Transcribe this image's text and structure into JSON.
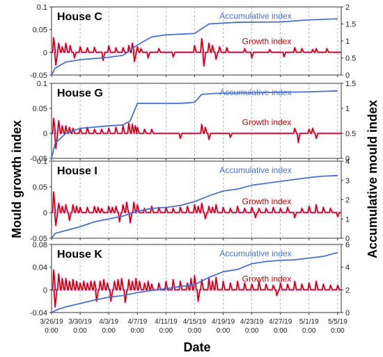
{
  "chart_data": {
    "type": "line",
    "xlabel": "Date",
    "ylabel_left": "Mould growth index",
    "ylabel_right": "Accumulative mould index",
    "x_ticks": [
      {
        "date": "3/26/19",
        "time": "0:00",
        "day": 0
      },
      {
        "date": "3/30/19",
        "time": "0:00",
        "day": 4
      },
      {
        "date": "4/3/19",
        "time": "0:00",
        "day": 8
      },
      {
        "date": "4/7/19",
        "time": "0:00",
        "day": 12
      },
      {
        "date": "4/11/19",
        "time": "0:00",
        "day": 16
      },
      {
        "date": "4/15/19",
        "time": "0:00",
        "day": 20
      },
      {
        "date": "4/19/19",
        "time": "0:00",
        "day": 24
      },
      {
        "date": "4/23/19",
        "time": "0:00",
        "day": 28
      },
      {
        "date": "4/27/19",
        "time": "0:00",
        "day": 32
      },
      {
        "date": "5/1/19",
        "time": "0:00",
        "day": 36
      },
      {
        "date": "5/5/19",
        "time": "0:00",
        "day": 40
      }
    ],
    "series_colors": {
      "accumulative": "#4a6fd0",
      "growth": "#c00000",
      "growth_glow": "#f06cf0"
    },
    "panels": [
      {
        "title": "House C",
        "left_ticks": [
          "0.1",
          "0.05",
          "0",
          "-0.05"
        ],
        "left_range": [
          -0.05,
          0.1
        ],
        "right_ticks": [
          "2",
          "1.5",
          "1",
          "0.5",
          "0"
        ],
        "right_range": [
          0,
          2
        ],
        "accum_label": "Accumulative index",
        "growth_label": "Growth index",
        "accumulative": [
          [
            0,
            0
          ],
          [
            0.5,
            0.2
          ],
          [
            2,
            0.38
          ],
          [
            4,
            0.45
          ],
          [
            8,
            0.52
          ],
          [
            10,
            0.58
          ],
          [
            12,
            0.88
          ],
          [
            14,
            1.12
          ],
          [
            16,
            1.18
          ],
          [
            18,
            1.2
          ],
          [
            20,
            1.22
          ],
          [
            22,
            1.5
          ],
          [
            26,
            1.55
          ],
          [
            32,
            1.56
          ],
          [
            36,
            1.62
          ],
          [
            40,
            1.65
          ]
        ],
        "growth_spikes": [
          [
            0.3,
            0.032
          ],
          [
            0.6,
            -0.028
          ],
          [
            1,
            0.02
          ],
          [
            1.5,
            0.012
          ],
          [
            2,
            0.02
          ],
          [
            2.6,
            0.015
          ],
          [
            3.2,
            -0.012
          ],
          [
            4,
            0.012
          ],
          [
            5,
            0.01
          ],
          [
            6,
            0.011
          ],
          [
            7.2,
            -0.018
          ],
          [
            8,
            0.014
          ],
          [
            9,
            0.01
          ],
          [
            10,
            0.01
          ],
          [
            10.8,
            0.015
          ],
          [
            11.3,
            0.02
          ],
          [
            11.6,
            -0.02
          ],
          [
            12,
            0.012
          ],
          [
            12.5,
            0.008
          ],
          [
            13.5,
            -0.012
          ],
          [
            15,
            0.008
          ],
          [
            17,
            -0.01
          ],
          [
            20,
            0.015
          ],
          [
            21,
            0.03
          ],
          [
            21.3,
            -0.03
          ],
          [
            22,
            0.02
          ],
          [
            22.5,
            0.015
          ],
          [
            23,
            -0.015
          ],
          [
            23.5,
            0.012
          ],
          [
            24.5,
            0.01
          ],
          [
            27,
            0.008
          ],
          [
            28,
            -0.012
          ],
          [
            30.5,
            0.006
          ],
          [
            32.5,
            -0.01
          ],
          [
            34,
            0.01
          ],
          [
            35,
            0.008
          ],
          [
            36.5,
            0.006
          ],
          [
            37,
            0.008
          ],
          [
            38.5,
            0.008
          ]
        ]
      },
      {
        "title": "House G",
        "left_ticks": [
          "0.1",
          "0.05",
          "0",
          "-0.05"
        ],
        "left_range": [
          -0.05,
          0.1
        ],
        "right_ticks": [
          "1.5",
          "1",
          "0.5",
          "0"
        ],
        "right_range": [
          0,
          1.5
        ],
        "accum_label": "Accumulative index",
        "growth_label": "Growth index",
        "accumulative": [
          [
            0,
            0
          ],
          [
            0.5,
            0.3
          ],
          [
            2,
            0.5
          ],
          [
            4,
            0.6
          ],
          [
            8,
            0.65
          ],
          [
            10,
            0.67
          ],
          [
            11,
            0.75
          ],
          [
            12,
            1.1
          ],
          [
            18,
            1.1
          ],
          [
            20,
            1.12
          ],
          [
            21,
            1.28
          ],
          [
            23,
            1.3
          ],
          [
            36,
            1.33
          ],
          [
            40,
            1.35
          ]
        ],
        "growth_spikes": [
          [
            0.3,
            0.03
          ],
          [
            0.6,
            -0.03
          ],
          [
            1,
            0.025
          ],
          [
            1.5,
            0.015
          ],
          [
            2,
            0.015
          ],
          [
            2.5,
            0.012
          ],
          [
            3,
            0.01
          ],
          [
            4,
            0.01
          ],
          [
            5,
            0.012
          ],
          [
            6,
            0.008
          ],
          [
            7,
            0.008
          ],
          [
            8,
            0.01
          ],
          [
            9,
            0.012
          ],
          [
            10,
            0.015
          ],
          [
            10.8,
            0.02
          ],
          [
            11.3,
            0.018
          ],
          [
            11.7,
            0.015
          ],
          [
            12,
            0.012
          ],
          [
            13,
            0.008
          ],
          [
            14,
            0.008
          ],
          [
            18,
            -0.01
          ],
          [
            21,
            0.018
          ],
          [
            21.5,
            0.012
          ],
          [
            22,
            -0.012
          ],
          [
            25,
            -0.008
          ],
          [
            34,
            0.01
          ],
          [
            34.5,
            -0.018
          ],
          [
            36,
            0.008
          ],
          [
            36.5,
            0.01
          ],
          [
            37,
            -0.01
          ]
        ]
      },
      {
        "title": "House I",
        "left_ticks": [
          "0.1",
          "0.05",
          "0",
          "-0.05"
        ],
        "left_range": [
          -0.05,
          0.1
        ],
        "right_ticks": [
          "4",
          "3",
          "2",
          "1",
          "0"
        ],
        "right_range": [
          0,
          4
        ],
        "accum_label": "Accumulative index",
        "growth_label": "Growth index",
        "accumulative": [
          [
            0,
            0
          ],
          [
            0.5,
            0.25
          ],
          [
            2,
            0.4
          ],
          [
            4,
            0.6
          ],
          [
            6,
            0.85
          ],
          [
            8,
            1.0
          ],
          [
            10,
            1.15
          ],
          [
            12,
            1.4
          ],
          [
            14,
            1.55
          ],
          [
            16,
            1.6
          ],
          [
            18,
            1.7
          ],
          [
            20,
            1.9
          ],
          [
            22,
            2.2
          ],
          [
            24,
            2.45
          ],
          [
            26,
            2.55
          ],
          [
            28,
            2.75
          ],
          [
            30,
            2.85
          ],
          [
            32,
            2.95
          ],
          [
            34,
            3.05
          ],
          [
            36,
            3.15
          ],
          [
            38,
            3.22
          ],
          [
            40,
            3.25
          ]
        ],
        "growth_spikes": [
          [
            0.3,
            0.04
          ],
          [
            0.6,
            -0.025
          ],
          [
            1,
            0.018
          ],
          [
            1.5,
            0.012
          ],
          [
            2,
            0.015
          ],
          [
            2.5,
            -0.015
          ],
          [
            3,
            0.015
          ],
          [
            3.5,
            0.012
          ],
          [
            4,
            0.01
          ],
          [
            5,
            0.01
          ],
          [
            6,
            0.012
          ],
          [
            6.5,
            0.01
          ],
          [
            7,
            0.008
          ],
          [
            8,
            0.012
          ],
          [
            8.5,
            0.01
          ],
          [
            9,
            0.012
          ],
          [
            9.5,
            -0.018
          ],
          [
            10,
            0.015
          ],
          [
            10.5,
            0.02
          ],
          [
            11,
            -0.02
          ],
          [
            11.5,
            0.02
          ],
          [
            12,
            0.015
          ],
          [
            13,
            0.008
          ],
          [
            14,
            0.012
          ],
          [
            15,
            0.01
          ],
          [
            16,
            0.01
          ],
          [
            17,
            0.008
          ],
          [
            18,
            0.01
          ],
          [
            19,
            0.012
          ],
          [
            20,
            0.015
          ],
          [
            20.5,
            0.012
          ],
          [
            21,
            0.018
          ],
          [
            21.5,
            -0.012
          ],
          [
            22,
            0.012
          ],
          [
            22.5,
            0.01
          ],
          [
            23,
            0.015
          ],
          [
            24,
            0.01
          ],
          [
            25,
            0.008
          ],
          [
            26,
            0.012
          ],
          [
            27,
            0.008
          ],
          [
            28,
            0.01
          ],
          [
            28.5,
            -0.01
          ],
          [
            29,
            0.008
          ],
          [
            30,
            0.008
          ],
          [
            31,
            0.01
          ],
          [
            32,
            0.008
          ],
          [
            33,
            0.01
          ],
          [
            34,
            -0.01
          ],
          [
            35,
            0.008
          ],
          [
            36,
            0.012
          ],
          [
            37,
            0.015
          ],
          [
            38,
            0.01
          ],
          [
            39,
            0.008
          ],
          [
            40,
            -0.008
          ]
        ]
      },
      {
        "title": "House K",
        "left_ticks": [
          "0.08",
          "0.04",
          "0",
          "-0.04"
        ],
        "left_range": [
          -0.04,
          0.08
        ],
        "right_ticks": [
          "6",
          "4",
          "2",
          "0"
        ],
        "right_range": [
          0,
          6
        ],
        "accum_label": "Accumulative index",
        "growth_label": "Growth index",
        "accumulative": [
          [
            0,
            0
          ],
          [
            1,
            0.3
          ],
          [
            2,
            0.5
          ],
          [
            4,
            0.8
          ],
          [
            6,
            1.1
          ],
          [
            8,
            1.35
          ],
          [
            10,
            1.5
          ],
          [
            12,
            1.75
          ],
          [
            14,
            1.95
          ],
          [
            16,
            2.1
          ],
          [
            18,
            2.3
          ],
          [
            20,
            2.45
          ],
          [
            22,
            3.1
          ],
          [
            24,
            3.6
          ],
          [
            26,
            3.8
          ],
          [
            28,
            4.3
          ],
          [
            30,
            4.5
          ],
          [
            32,
            4.6
          ],
          [
            34,
            4.65
          ],
          [
            36,
            4.8
          ],
          [
            38,
            4.95
          ],
          [
            40,
            5.3
          ]
        ],
        "growth_spikes": [
          [
            0.3,
            0.035
          ],
          [
            0.5,
            -0.03
          ],
          [
            1,
            0.028
          ],
          [
            1.5,
            0.02
          ],
          [
            2,
            0.02
          ],
          [
            2.5,
            0.015
          ],
          [
            3,
            0.018
          ],
          [
            3.5,
            0.015
          ],
          [
            4,
            0.012
          ],
          [
            4.5,
            0.015
          ],
          [
            5,
            0.012
          ],
          [
            5.5,
            0.015
          ],
          [
            6,
            0.015
          ],
          [
            6.3,
            -0.02
          ],
          [
            6.8,
            0.015
          ],
          [
            7.3,
            0.018
          ],
          [
            7.8,
            0.012
          ],
          [
            8.3,
            -0.02
          ],
          [
            8.8,
            0.015
          ],
          [
            9.3,
            0.018
          ],
          [
            9.8,
            0.02
          ],
          [
            10.3,
            -0.022
          ],
          [
            10.8,
            0.018
          ],
          [
            11.3,
            0.015
          ],
          [
            11.8,
            0.02
          ],
          [
            12.3,
            0.015
          ],
          [
            13,
            0.012
          ],
          [
            13.5,
            0.015
          ],
          [
            14,
            0.01
          ],
          [
            15,
            0.012
          ],
          [
            16,
            0.015
          ],
          [
            17,
            0.018
          ],
          [
            18,
            0.015
          ],
          [
            19,
            0.012
          ],
          [
            19.5,
            0.02
          ],
          [
            20,
            0.025
          ],
          [
            20.5,
            -0.02
          ],
          [
            21,
            0.018
          ],
          [
            22,
            0.02
          ],
          [
            22.5,
            0.015
          ],
          [
            23,
            0.022
          ],
          [
            24,
            0.015
          ],
          [
            25,
            0.012
          ],
          [
            26,
            0.015
          ],
          [
            27,
            0.012
          ],
          [
            28,
            0.01
          ],
          [
            29,
            0.015
          ],
          [
            30,
            0.01
          ],
          [
            31,
            0.008
          ],
          [
            31.5,
            -0.01
          ],
          [
            32,
            0.012
          ],
          [
            33,
            0.01
          ],
          [
            34,
            0.015
          ],
          [
            35,
            0.01
          ],
          [
            36,
            0.012
          ],
          [
            37,
            0.015
          ],
          [
            38,
            0.01
          ],
          [
            39,
            0.008
          ],
          [
            40,
            0.008
          ]
        ]
      }
    ]
  }
}
